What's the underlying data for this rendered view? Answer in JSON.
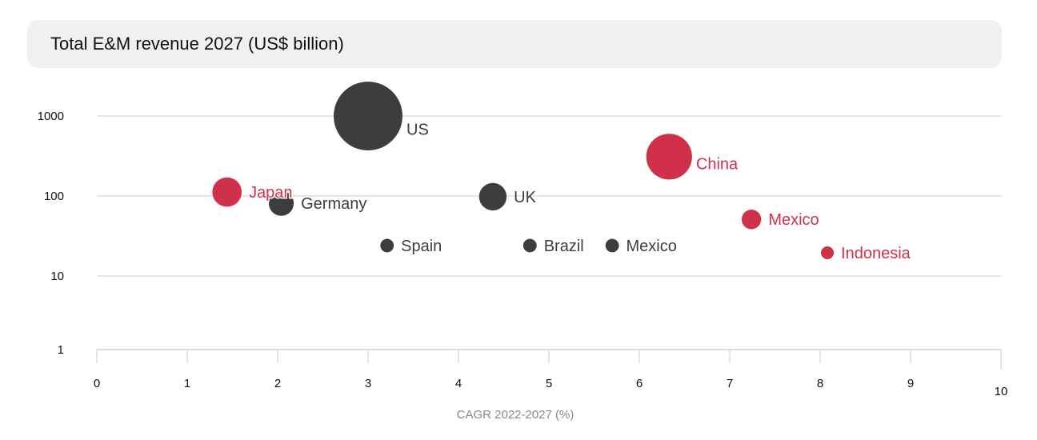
{
  "chart_data": {
    "type": "scatter",
    "subtype": "bubble",
    "title": "Total E&M revenue 2027 (US$ billion)",
    "xlabel": "CAGR 2022-2027 (%)",
    "ylabel": "",
    "xlim": [
      0,
      10
    ],
    "ylim": [
      1,
      1000
    ],
    "yscale": "log",
    "x_ticks": [
      "0",
      "1",
      "2",
      "3",
      "4",
      "5",
      "6",
      "7",
      "8",
      "9",
      "10"
    ],
    "y_ticks": [
      "1000",
      "100",
      "10",
      "1"
    ],
    "grid": true,
    "colors": {
      "highlight": "#d1304a",
      "default": "#3d3d3d",
      "grid": "#dddddd"
    },
    "points": [
      {
        "label": "US",
        "x": 3.0,
        "y": 1000,
        "highlight": false
      },
      {
        "label": "China",
        "x": 6.33,
        "y": 310,
        "highlight": true
      },
      {
        "label": "Japan",
        "x": 1.44,
        "y": 112,
        "highlight": true
      },
      {
        "label": "Germany",
        "x": 2.04,
        "y": 81,
        "highlight": false
      },
      {
        "label": "UK",
        "x": 4.38,
        "y": 98,
        "highlight": false
      },
      {
        "label": "Spain",
        "x": 3.21,
        "y": 24,
        "highlight": false
      },
      {
        "label": "Brazil",
        "x": 4.79,
        "y": 24,
        "highlight": false
      },
      {
        "label": "Mexico",
        "x": 5.7,
        "y": 24,
        "highlight": false
      },
      {
        "label": "Mexico",
        "x": 7.24,
        "y": 51,
        "highlight": true
      },
      {
        "label": "Indonesia",
        "x": 8.08,
        "y": 19.5,
        "highlight": true
      }
    ]
  }
}
